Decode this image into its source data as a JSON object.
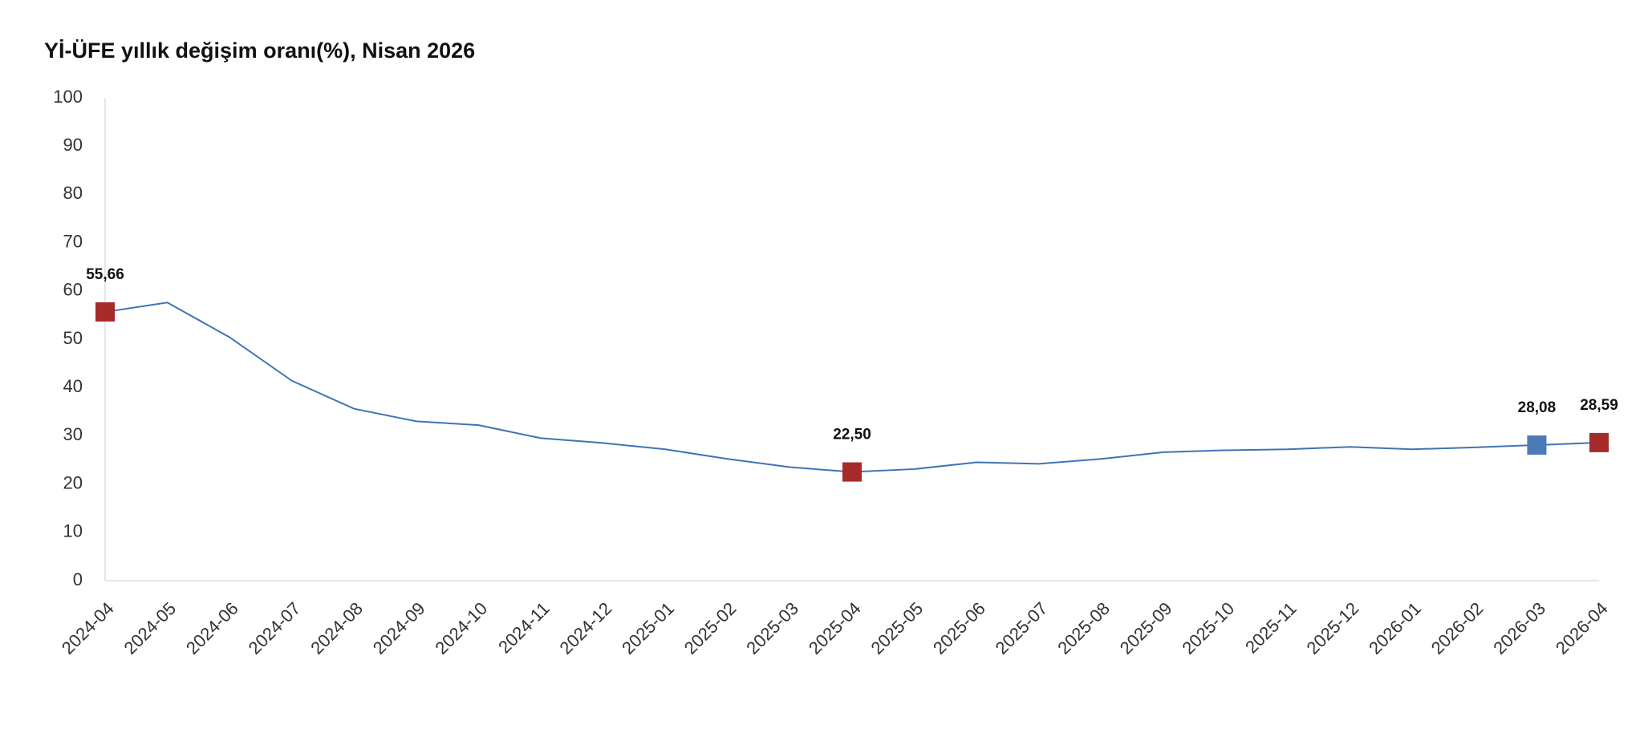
{
  "chart_data": {
    "type": "line",
    "title": "Yİ-ÜFE yıllık değişim oranı(%), Nisan 2026",
    "categories": [
      "2024-04",
      "2024-05",
      "2024-06",
      "2024-07",
      "2024-08",
      "2024-09",
      "2024-10",
      "2024-11",
      "2024-12",
      "2025-01",
      "2025-02",
      "2025-03",
      "2025-04",
      "2025-05",
      "2025-06",
      "2025-07",
      "2025-08",
      "2025-09",
      "2025-10",
      "2025-11",
      "2025-12",
      "2026-01",
      "2026-02",
      "2026-03",
      "2026-04"
    ],
    "values": [
      55.66,
      57.6,
      50.4,
      41.4,
      35.6,
      33.0,
      32.2,
      29.5,
      28.5,
      27.2,
      25.2,
      23.5,
      22.5,
      23.1,
      24.5,
      24.2,
      25.2,
      26.6,
      27.0,
      27.2,
      27.7,
      27.2,
      27.6,
      28.08,
      28.59
    ],
    "value_labels": [
      "55,66",
      null,
      null,
      null,
      null,
      null,
      null,
      null,
      null,
      null,
      null,
      null,
      "22,50",
      null,
      null,
      null,
      null,
      null,
      null,
      null,
      null,
      null,
      null,
      "28,08",
      "28,59"
    ],
    "point_colors": [
      "#a52a2a",
      null,
      null,
      null,
      null,
      null,
      null,
      null,
      null,
      null,
      null,
      null,
      "#a52a2a",
      null,
      null,
      null,
      null,
      null,
      null,
      null,
      null,
      null,
      null,
      "#4a7ab8",
      "#a52a2a"
    ],
    "color": "#3f74b3",
    "ylim": [
      0,
      100
    ],
    "yticks": [
      0,
      10,
      20,
      30,
      40,
      50,
      60,
      70,
      80,
      90,
      100
    ],
    "grid": false
  }
}
